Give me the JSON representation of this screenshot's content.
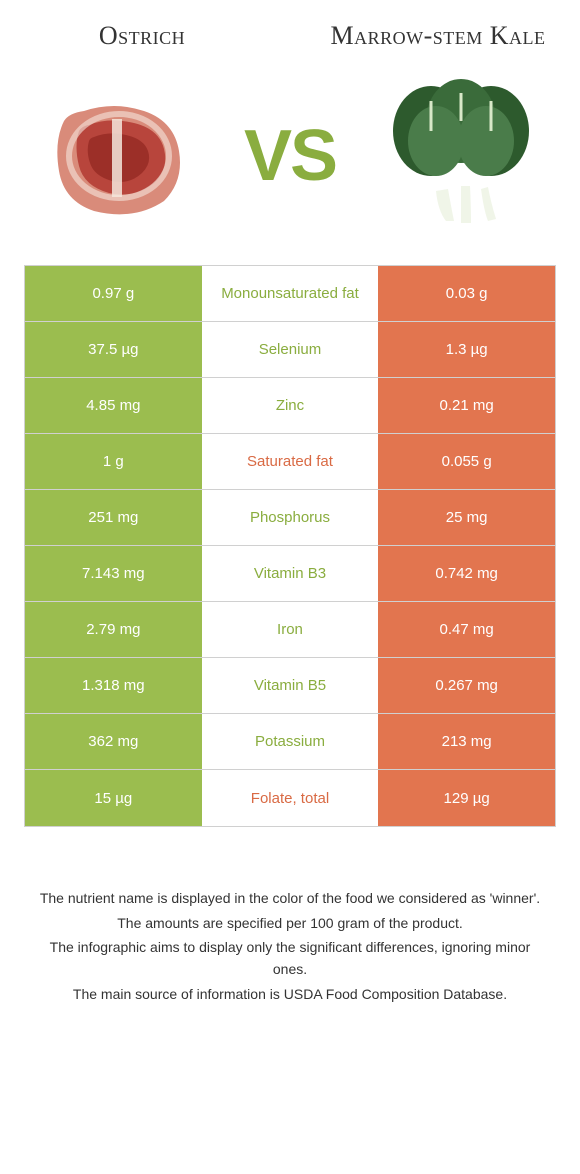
{
  "colors": {
    "green": "#9bbd4f",
    "orange": "#e2754f",
    "green_text": "#8aad3f",
    "orange_text": "#d96a44"
  },
  "header": {
    "left_title": "Ostrich",
    "right_title": "Marrow-stem Kale",
    "vs": "VS"
  },
  "rows": [
    {
      "left": "0.97 g",
      "mid": "Monounsaturated fat",
      "right": "0.03 g",
      "winner": "left"
    },
    {
      "left": "37.5 µg",
      "mid": "Selenium",
      "right": "1.3 µg",
      "winner": "left"
    },
    {
      "left": "4.85 mg",
      "mid": "Zinc",
      "right": "0.21 mg",
      "winner": "left"
    },
    {
      "left": "1 g",
      "mid": "Saturated fat",
      "right": "0.055 g",
      "winner": "right"
    },
    {
      "left": "251 mg",
      "mid": "Phosphorus",
      "right": "25 mg",
      "winner": "left"
    },
    {
      "left": "7.143 mg",
      "mid": "Vitamin B3",
      "right": "0.742 mg",
      "winner": "left"
    },
    {
      "left": "2.79 mg",
      "mid": "Iron",
      "right": "0.47 mg",
      "winner": "left"
    },
    {
      "left": "1.318 mg",
      "mid": "Vitamin B5",
      "right": "0.267 mg",
      "winner": "left"
    },
    {
      "left": "362 mg",
      "mid": "Potassium",
      "right": "213 mg",
      "winner": "left"
    },
    {
      "left": "15 µg",
      "mid": "Folate, total",
      "right": "129 µg",
      "winner": "right"
    }
  ],
  "footnotes": [
    "The nutrient name is displayed in the color of the food we considered as 'winner'.",
    "The amounts are specified per 100 gram of the product.",
    "The infographic aims to display only the significant differences, ignoring minor ones.",
    "The main source of information is USDA Food Composition Database."
  ]
}
